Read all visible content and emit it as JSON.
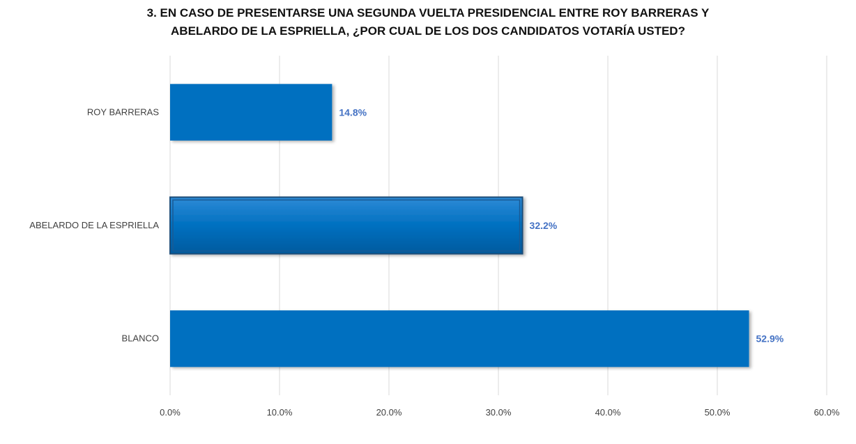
{
  "chart_data": {
    "type": "bar",
    "orientation": "horizontal",
    "title_lines": [
      "3. EN CASO DE PRESENTARSE UNA SEGUNDA VUELTA PRESIDENCIAL ENTRE ROY BARRERAS Y",
      "ABELARDO DE LA ESPRIELLA, ¿POR CUAL DE LOS DOS CANDIDATOS VOTARÍA USTED?"
    ],
    "categories": [
      "ROY BARRERAS",
      "ABELARDO DE LA ESPRIELLA",
      "BLANCO"
    ],
    "values": [
      14.8,
      32.2,
      52.9
    ],
    "value_labels": [
      "14.8%",
      "32.2%",
      "52.9%"
    ],
    "highlighted_category": "ABELARDO DE LA ESPRIELLA",
    "xlim": [
      0,
      60
    ],
    "xticks": [
      0,
      10,
      20,
      30,
      40,
      50,
      60
    ],
    "xtick_labels": [
      "0.0%",
      "10.0%",
      "20.0%",
      "30.0%",
      "40.0%",
      "50.0%",
      "60.0%"
    ],
    "xlabel": "",
    "ylabel": "",
    "grid": "vertical",
    "legend": "none",
    "colors": {
      "bar": "#0070C0",
      "bar_highlight_border": "#1F4E79",
      "data_label": "#4472C4",
      "grid": "#D9D9D9",
      "axis_text": "#404040",
      "title": "#111111"
    }
  }
}
